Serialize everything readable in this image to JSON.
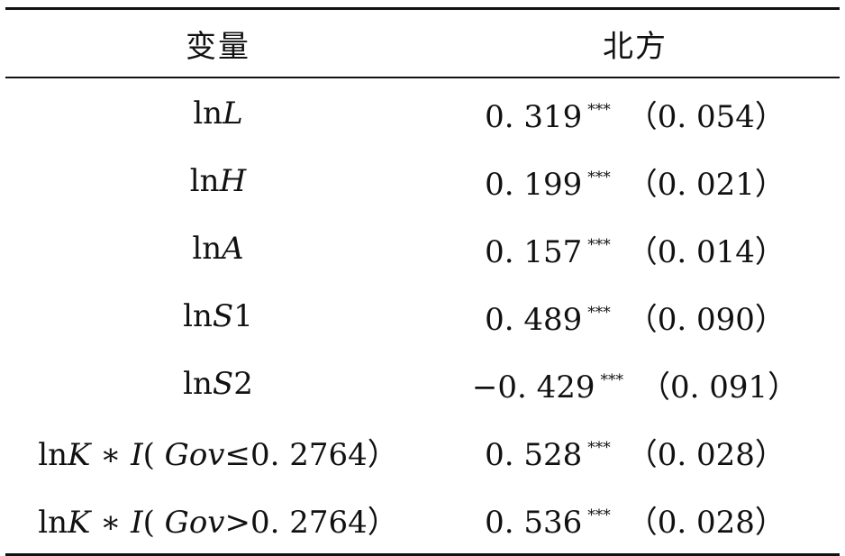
{
  "table": {
    "header": {
      "variable": "变量",
      "region": "北方"
    },
    "rows": [
      {
        "ln": "ln",
        "var": "L",
        "suffix": "",
        "coef": "0. 319",
        "stars": "***",
        "se": "（0. 054）"
      },
      {
        "ln": "ln",
        "var": "H",
        "suffix": "",
        "coef": "0. 199",
        "stars": "***",
        "se": "（0. 021）"
      },
      {
        "ln": "ln",
        "var": "A",
        "suffix": "",
        "coef": "0. 157",
        "stars": "***",
        "se": "（0. 014）"
      },
      {
        "ln": "ln",
        "var": "S",
        "suffix": "1",
        "coef": "0. 489",
        "stars": "***",
        "se": "（0. 090）"
      },
      {
        "ln": "ln",
        "var": "S",
        "suffix": "2",
        "coef": "−0. 429",
        "stars": "***",
        "se": "（0. 091）"
      },
      {
        "ln": "ln",
        "var": "K",
        "mid": " ∗ ",
        "ind": "I",
        "open": "( ",
        "gov": "Gov",
        "cond": "≤0. 2764）",
        "coef": "0. 528",
        "stars": "***",
        "se": "（0. 028）"
      },
      {
        "ln": "ln",
        "var": "K",
        "mid": " ∗ ",
        "ind": "I",
        "open": "( ",
        "gov": "Gov",
        "cond": ">0. 2764）",
        "coef": "0. 536",
        "stars": "***",
        "se": "（0. 028）"
      }
    ]
  }
}
